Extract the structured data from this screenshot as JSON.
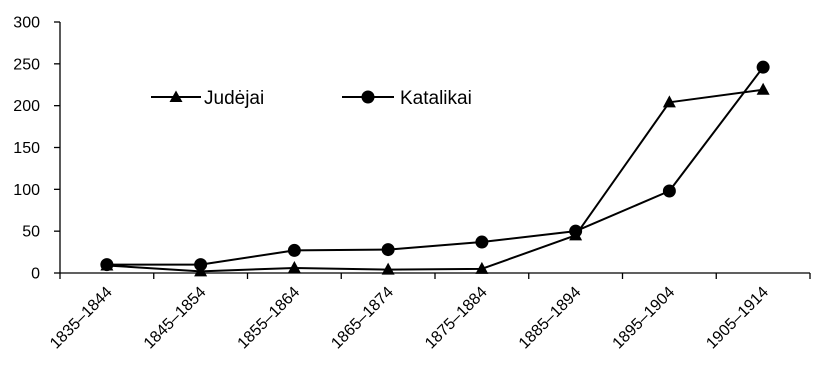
{
  "chart_data": {
    "type": "line",
    "title": "",
    "xlabel": "",
    "ylabel": "",
    "categories": [
      "1835–1844",
      "1845–1854",
      "1855–1864",
      "1865–1874",
      "1875–1884",
      "1885–1894",
      "1895–1904",
      "1905–1914"
    ],
    "y_ticks": [
      "0",
      "50",
      "100",
      "150",
      "200",
      "250",
      "300"
    ],
    "ylim": [
      0,
      300
    ],
    "grid": false,
    "legend": "inside-top-left",
    "series": [
      {
        "name": "Judėjai",
        "marker": "triangle",
        "color": "#000000",
        "values": [
          9,
          2,
          6,
          4,
          5,
          45,
          204,
          219
        ]
      },
      {
        "name": "Katalikai",
        "marker": "circle",
        "color": "#000000",
        "values": [
          10,
          10,
          27,
          28,
          37,
          50,
          98,
          246
        ]
      }
    ]
  }
}
